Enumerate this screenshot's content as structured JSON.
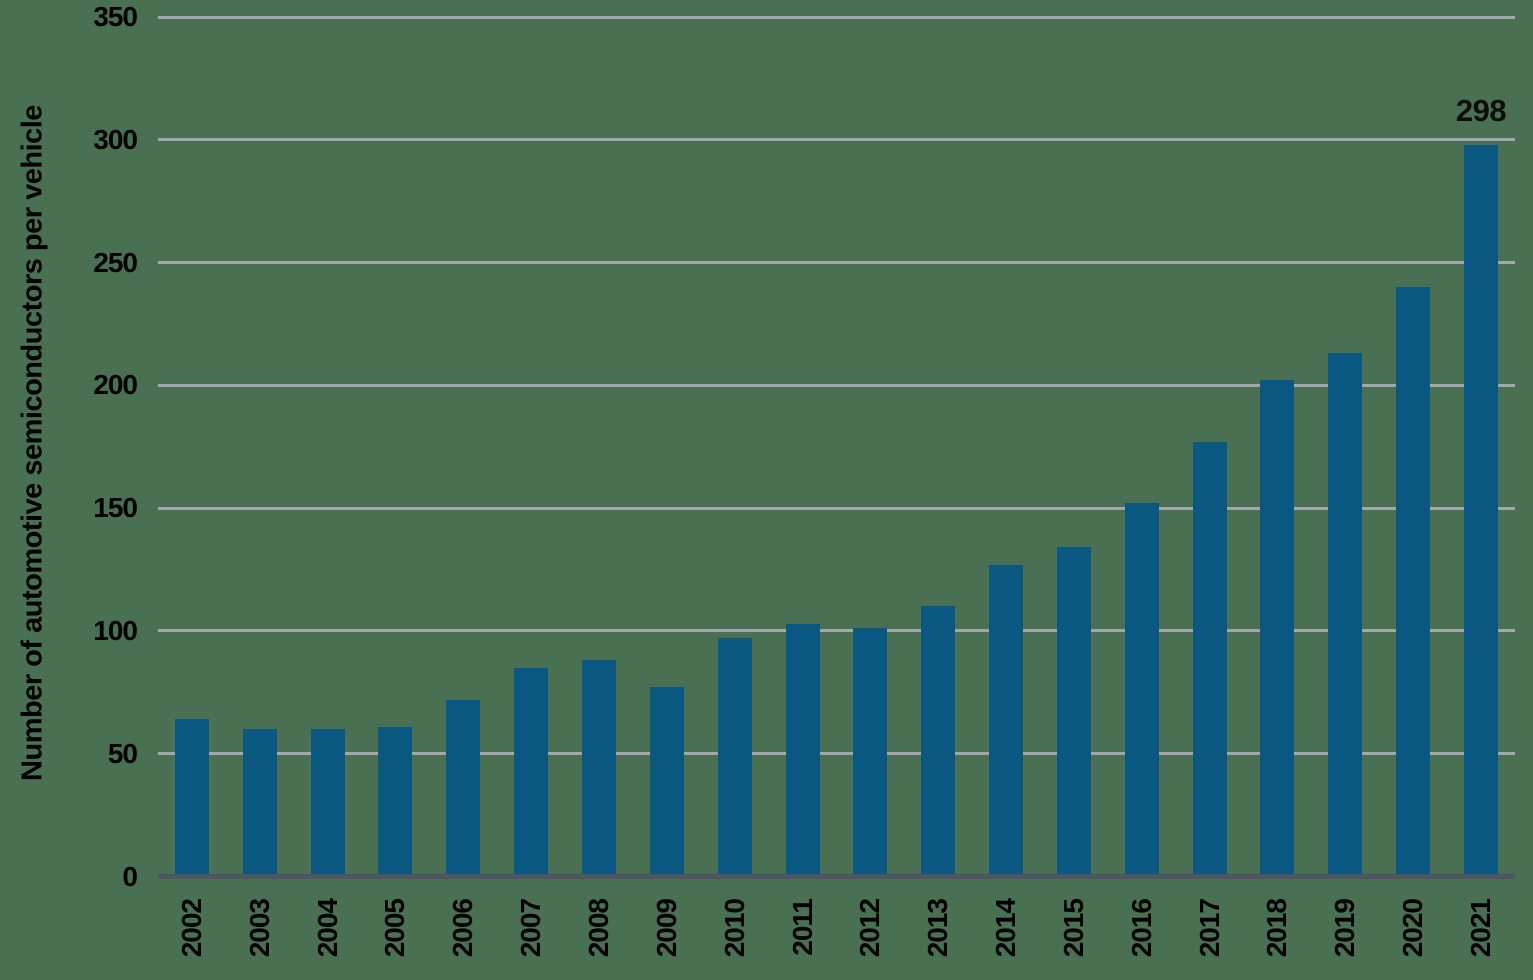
{
  "chart_data": {
    "type": "bar",
    "title": "",
    "ylabel": "Number of automotive semiconductors per vehicle",
    "xlabel": "",
    "categories": [
      "2002",
      "2003",
      "2004",
      "2005",
      "2006",
      "2007",
      "2008",
      "2009",
      "2010",
      "2011",
      "2012",
      "2013",
      "2014",
      "2015",
      "2016",
      "2017",
      "2018",
      "2019",
      "2020",
      "2021"
    ],
    "values": [
      64,
      60,
      60,
      61,
      72,
      85,
      88,
      77,
      97,
      103,
      101,
      110,
      127,
      134,
      152,
      177,
      202,
      213,
      240,
      298
    ],
    "ylim": [
      0,
      350
    ],
    "ytick_step": 50,
    "yticks": [
      0,
      50,
      100,
      150,
      200,
      250,
      300,
      350
    ],
    "grid": "horizontal",
    "legend": "none",
    "bar_orientation": "vertical",
    "annotations": [
      {
        "category": "2021",
        "text": "298"
      }
    ]
  },
  "colors": {
    "background": "#4a7053",
    "bar": "#0a5781",
    "gridline": "#a2a7ae",
    "axis_line": "#4d5662",
    "text": "#000000",
    "annotation": "#0d0d0d"
  }
}
